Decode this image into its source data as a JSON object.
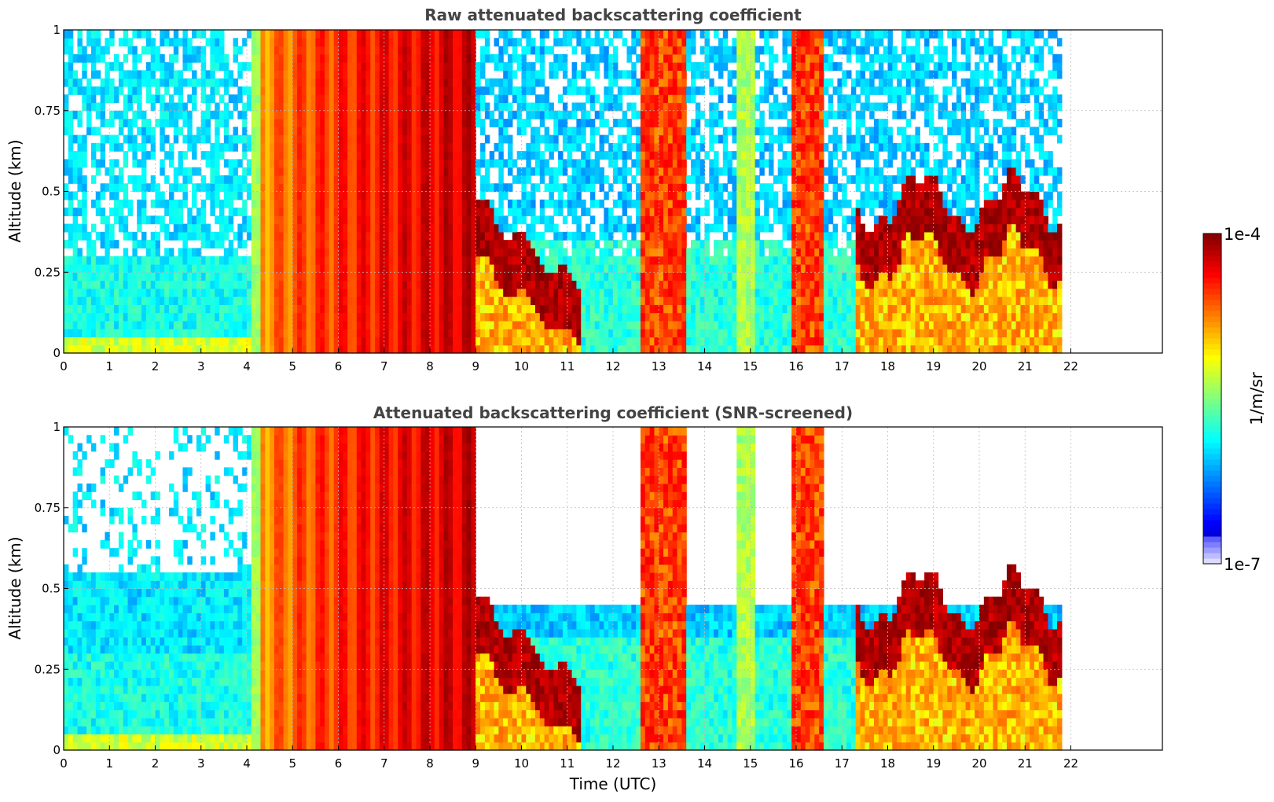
{
  "chart_data": [
    {
      "type": "heatmap",
      "title": "Raw attenuated backscattering coefficient",
      "xlabel": "",
      "ylabel": "Altitude (km)",
      "xlim": [
        0,
        24
      ],
      "ylim": [
        0,
        1
      ],
      "x_ticks": [
        "0",
        "1",
        "2",
        "3",
        "4",
        "5",
        "6",
        "7",
        "8",
        "9",
        "10",
        "11",
        "12",
        "13",
        "14",
        "15",
        "16",
        "17",
        "18",
        "19",
        "20",
        "21",
        "22"
      ],
      "y_ticks": [
        "0",
        "0.25",
        "0.5",
        "0.75",
        "1"
      ],
      "grid": true,
      "data_end_hour": 21.8,
      "regimes": [
        {
          "x": [
            0,
            4.1
          ],
          "description": "clear-air blue with noisy upper layer",
          "value_low": 1.5e-06
        },
        {
          "x": [
            4.1,
            9.0
          ],
          "description": "full-column high backscatter (yellow to red)",
          "value_low": 2e-05
        },
        {
          "x": [
            9.0,
            11.3
          ],
          "description": "dark-red layer descending from 0.35 to 0.1 km"
        },
        {
          "x": [
            12.6,
            13.6
          ],
          "description": "full-column strong signal"
        },
        {
          "x": [
            15.95,
            16.6
          ],
          "description": "full-column strong signal"
        },
        {
          "x": [
            17.3,
            21.8
          ],
          "description": "dark-red layer near 0.3-0.45 km"
        }
      ]
    },
    {
      "type": "heatmap",
      "title": "Attenuated backscattering coefficient (SNR-screened)",
      "xlabel": "Time (UTC)",
      "ylabel": "Altitude (km)",
      "xlim": [
        0,
        24
      ],
      "ylim": [
        0,
        1
      ],
      "x_ticks": [
        "0",
        "1",
        "2",
        "3",
        "4",
        "5",
        "6",
        "7",
        "8",
        "9",
        "10",
        "11",
        "12",
        "13",
        "14",
        "15",
        "16",
        "17",
        "18",
        "19",
        "20",
        "21",
        "22"
      ],
      "y_ticks": [
        "0",
        "0.25",
        "0.5",
        "0.75",
        "1"
      ],
      "grid": true,
      "data_end_hour": 21.8,
      "screened": true
    }
  ],
  "colorbar": {
    "label": "1/m/sr",
    "vmin_label": "1e-7",
    "vmax_label": "1e-4",
    "vmin": 1e-07,
    "vmax": 0.0001,
    "scale": "log",
    "colormap": "jet"
  }
}
